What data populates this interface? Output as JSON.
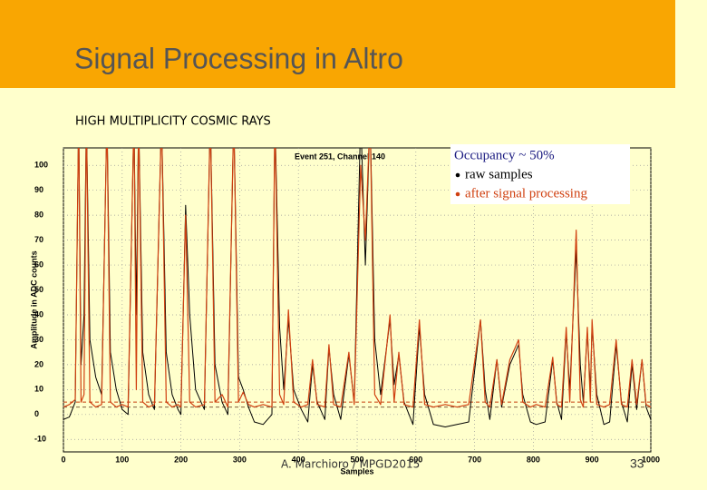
{
  "slide_title": "Signal Processing in Altro",
  "subtitle": "HIGH MULTIPLICITY COSMIC RAYS",
  "footer": "A. Marchioro / MPGD2015",
  "page_number": "33",
  "chart_data": {
    "type": "line",
    "title": "Event 251, Channel 140",
    "xlabel": "Samples",
    "ylabel": "Amplitude in ADC counts",
    "legend_title": "Occupancy ~ 50%",
    "legend": "upper right",
    "grid": true,
    "xlim": [
      0,
      1000
    ],
    "xticks": [
      0,
      100,
      200,
      300,
      400,
      500,
      600,
      700,
      800,
      900,
      1000
    ],
    "ylim": [
      -15,
      107
    ],
    "yticks": [
      -10,
      0,
      10,
      20,
      30,
      40,
      50,
      60,
      70,
      80,
      90,
      100
    ],
    "reference_lines": [
      {
        "value": 5,
        "color": "#c84010"
      },
      {
        "value": 3,
        "color": "#806040"
      }
    ],
    "x": [
      0,
      10,
      20,
      26,
      30,
      35,
      39,
      45,
      55,
      65,
      74,
      80,
      90,
      100,
      110,
      120,
      124,
      128,
      135,
      145,
      155,
      167,
      175,
      185,
      195,
      200,
      208,
      215,
      225,
      240,
      250,
      258,
      270,
      280,
      290,
      298,
      306,
      315,
      325,
      340,
      355,
      360,
      368,
      375,
      383,
      392,
      405,
      416,
      424,
      432,
      445,
      452,
      460,
      472,
      486,
      495,
      506,
      514,
      522,
      530,
      540,
      556,
      563,
      571,
      580,
      595,
      606,
      615,
      630,
      650,
      670,
      690,
      710,
      718,
      726,
      738,
      746,
      760,
      775,
      782,
      795,
      805,
      820,
      833,
      840,
      848,
      856,
      862,
      873,
      880,
      885,
      892,
      897,
      900,
      908,
      920,
      930,
      941,
      950,
      960,
      968,
      976,
      985,
      992,
      1000
    ],
    "series": [
      {
        "name": "raw samples",
        "color": "#000000",
        "values": [
          -2,
          -1,
          5,
          120,
          20,
          40,
          120,
          30,
          15,
          8,
          120,
          25,
          10,
          2,
          0,
          120,
          40,
          120,
          25,
          8,
          2,
          120,
          25,
          8,
          2,
          0,
          84,
          40,
          10,
          2,
          120,
          20,
          5,
          0,
          120,
          15,
          10,
          3,
          -3,
          -4,
          0,
          120,
          35,
          10,
          38,
          10,
          2,
          -3,
          20,
          5,
          -2,
          27,
          8,
          -2,
          24,
          5,
          120,
          60,
          120,
          30,
          8,
          38,
          12,
          24,
          5,
          -4,
          35,
          8,
          -4,
          -5,
          -4,
          -3,
          38,
          10,
          -2,
          22,
          3,
          20,
          28,
          8,
          -3,
          -4,
          -3,
          22,
          5,
          -2,
          33,
          10,
          66,
          20,
          5,
          33,
          10,
          36,
          8,
          -4,
          -3,
          28,
          5,
          -3,
          20,
          2,
          22,
          3,
          -2
        ]
      },
      {
        "name": "after signal processing",
        "color": "#d04010",
        "values": [
          3,
          4,
          6,
          120,
          5,
          8,
          120,
          5,
          3,
          4,
          120,
          5,
          3,
          4,
          3,
          120,
          10,
          120,
          5,
          3,
          4,
          120,
          5,
          3,
          4,
          3,
          80,
          5,
          3,
          4,
          120,
          5,
          8,
          3,
          120,
          5,
          9,
          4,
          3,
          4,
          3,
          120,
          8,
          4,
          42,
          5,
          3,
          4,
          22,
          4,
          3,
          28,
          4,
          3,
          25,
          4,
          100,
          70,
          120,
          8,
          4,
          40,
          5,
          25,
          4,
          3,
          38,
          4,
          3,
          4,
          3,
          4,
          38,
          5,
          3,
          22,
          4,
          22,
          30,
          5,
          3,
          4,
          3,
          23,
          4,
          3,
          35,
          5,
          74,
          6,
          3,
          35,
          5,
          38,
          4,
          3,
          4,
          30,
          4,
          3,
          22,
          4,
          22,
          4,
          3
        ]
      }
    ]
  }
}
